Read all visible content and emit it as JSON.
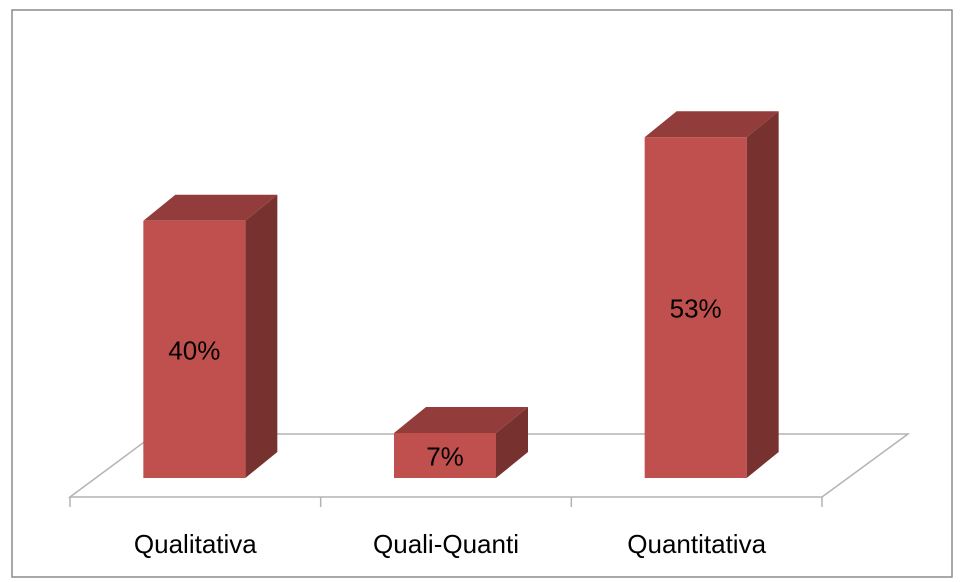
{
  "chart_data": {
    "type": "bar3d",
    "categories": [
      "Qualitativa",
      "Quali-Quanti",
      "Quantitativa"
    ],
    "values": [
      40,
      7,
      53
    ],
    "value_labels": [
      "40%",
      "7%",
      "53%"
    ],
    "color": "#c0504d"
  }
}
